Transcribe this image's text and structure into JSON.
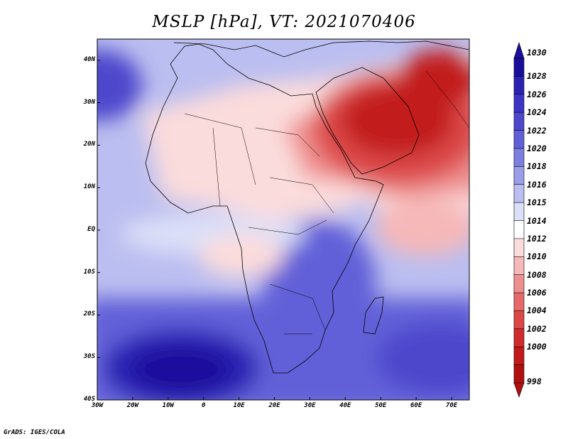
{
  "title": "MSLP [hPa], VT: 2021070406",
  "credit": "GrADS: IGES/COLA",
  "map": {
    "lon_range": [
      -30,
      75
    ],
    "lat_range": [
      -40,
      45
    ],
    "lat_ticks": [
      "40N",
      "30N",
      "20N",
      "10N",
      "EQ",
      "10S",
      "20S",
      "30S",
      "40S"
    ],
    "lon_ticks": [
      "30W",
      "20W",
      "10W",
      "0",
      "10E",
      "20E",
      "30E",
      "40E",
      "50E",
      "60E",
      "70E"
    ]
  },
  "colorbar": {
    "levels": [
      "1030",
      "1028",
      "1026",
      "1024",
      "1022",
      "1020",
      "1018",
      "1016",
      "1015",
      "1014",
      "1012",
      "1010",
      "1008",
      "1006",
      "1004",
      "1002",
      "1000",
      "998"
    ],
    "colors": [
      "#1a0e9c",
      "#2b22b4",
      "#3d33c4",
      "#4e46cc",
      "#6260d8",
      "#7d7fe0",
      "#9b9de8",
      "#bbbef0",
      "#dcdff8",
      "#ffffff",
      "#fbdcdc",
      "#f6b8b8",
      "#ef9090",
      "#e66a6a",
      "#dc4848",
      "#d02c2c",
      "#c21a1a",
      "#b01010"
    ]
  },
  "field_colors": {
    "high_core": "#1a0e9c",
    "high_outer": "#6260d8",
    "ridge": "#9b9de8",
    "neutral": "#ffffff",
    "weak_low": "#fbdcdc",
    "low": "#ef9090",
    "thermal_low_core": "#c21a1a"
  }
}
